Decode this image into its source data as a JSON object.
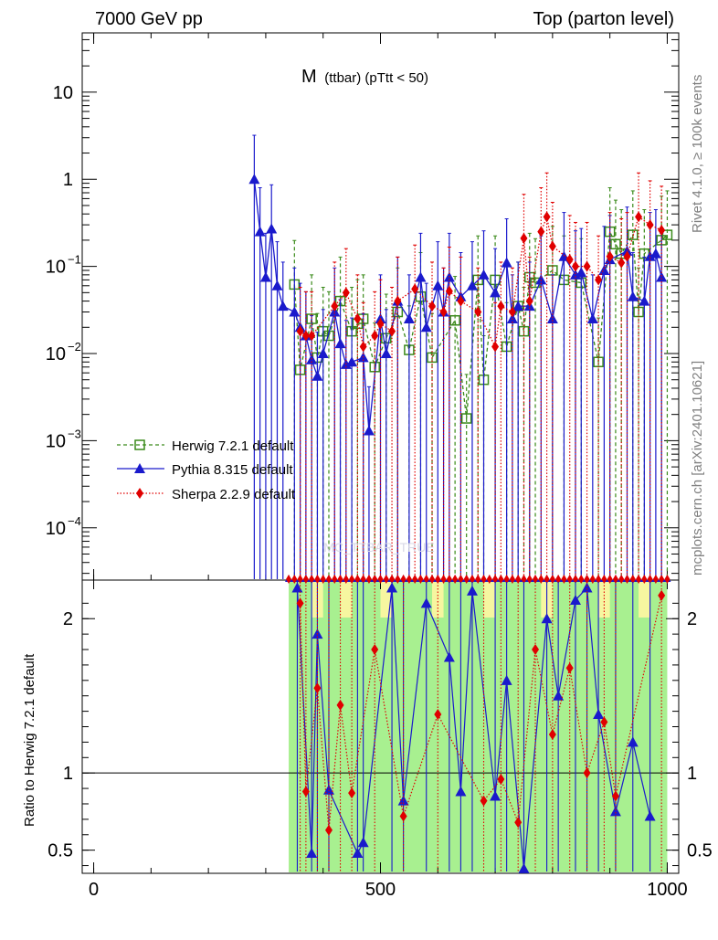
{
  "header": {
    "left": "7000 GeV pp",
    "right": "Top (parton level)"
  },
  "side": {
    "rivet": "Rivet 4.1.0, ≥ 100k events",
    "mcplots": "mcplots.cern.ch [arXiv:2401.10621]"
  },
  "watermark": "MC_TTBAR_TRUE",
  "chart_data": {
    "type": "line",
    "title_main": "M",
    "title_sub": "(ttbar) (pTtt < 50)",
    "xlim": [
      -20,
      1020
    ],
    "x_ticks": [
      0,
      500,
      1000
    ],
    "main_ylim_log10": [
      -4.6,
      1.68
    ],
    "main_y_ticks": [
      {
        "v": 10,
        "label": "10"
      },
      {
        "v": 1,
        "label": "1"
      },
      {
        "v": 0.1,
        "label": "10",
        "exp": "−1"
      },
      {
        "v": 0.01,
        "label": "10",
        "exp": "−2"
      },
      {
        "v": 0.001,
        "label": "10",
        "exp": "−3"
      },
      {
        "v": 0.0001,
        "label": "10",
        "exp": "−4"
      }
    ],
    "ratio_ylabel": "Ratio to Herwig 7.2.1 default",
    "ratio_ylim": [
      0.35,
      2.25
    ],
    "ratio_y_ticks": [
      {
        "v": 2,
        "label": "2"
      },
      {
        "v": 1,
        "label": "1"
      },
      {
        "v": 0.5,
        "label": "0.5"
      }
    ],
    "series": [
      {
        "name": "Herwig 7.2.1 default",
        "color": "#3a8a1a",
        "marker": "square",
        "points": [
          [
            350,
            0.062
          ],
          [
            360,
            0.0065
          ],
          [
            380,
            0.025
          ],
          [
            390,
            0.009
          ],
          [
            400,
            0.018
          ],
          [
            410,
            0.016
          ],
          [
            430,
            0.04
          ],
          [
            450,
            0.018
          ],
          [
            460,
            0.022
          ],
          [
            470,
            0.025
          ],
          [
            490,
            0.007
          ],
          [
            510,
            0.015
          ],
          [
            530,
            0.03
          ],
          [
            550,
            0.011
          ],
          [
            570,
            0.045
          ],
          [
            590,
            0.009
          ],
          [
            630,
            0.024
          ],
          [
            650,
            0.0018
          ],
          [
            670,
            0.07
          ],
          [
            680,
            0.005
          ],
          [
            700,
            0.07
          ],
          [
            720,
            0.012
          ],
          [
            740,
            0.035
          ],
          [
            750,
            0.018
          ],
          [
            760,
            0.075
          ],
          [
            770,
            0.065
          ],
          [
            800,
            0.09
          ],
          [
            820,
            0.07
          ],
          [
            850,
            0.065
          ],
          [
            880,
            0.008
          ],
          [
            900,
            0.25
          ],
          [
            910,
            0.18
          ],
          [
            920,
            0.14
          ],
          [
            940,
            0.23
          ],
          [
            950,
            0.03
          ],
          [
            960,
            0.14
          ],
          [
            990,
            0.2
          ],
          [
            1000,
            0.23
          ]
        ]
      },
      {
        "name": "Pythia 8.315 default",
        "color": "#1a1acc",
        "marker": "triangle",
        "points": [
          [
            280,
            1.0
          ],
          [
            290,
            0.25
          ],
          [
            300,
            0.075
          ],
          [
            310,
            0.27
          ],
          [
            320,
            0.06
          ],
          [
            330,
            0.035
          ],
          [
            350,
            0.03
          ],
          [
            360,
            0.02
          ],
          [
            370,
            0.016
          ],
          [
            380,
            0.0085
          ],
          [
            390,
            0.0055
          ],
          [
            400,
            0.01
          ],
          [
            420,
            0.03
          ],
          [
            430,
            0.013
          ],
          [
            440,
            0.0075
          ],
          [
            450,
            0.008
          ],
          [
            470,
            0.009
          ],
          [
            480,
            0.0013
          ],
          [
            500,
            0.025
          ],
          [
            510,
            0.01
          ],
          [
            530,
            0.04
          ],
          [
            550,
            0.025
          ],
          [
            570,
            0.075
          ],
          [
            580,
            0.02
          ],
          [
            600,
            0.06
          ],
          [
            610,
            0.03
          ],
          [
            620,
            0.075
          ],
          [
            640,
            0.045
          ],
          [
            660,
            0.06
          ],
          [
            680,
            0.08
          ],
          [
            700,
            0.05
          ],
          [
            720,
            0.11
          ],
          [
            730,
            0.025
          ],
          [
            740,
            0.035
          ],
          [
            760,
            0.035
          ],
          [
            780,
            0.07
          ],
          [
            800,
            0.025
          ],
          [
            820,
            0.13
          ],
          [
            840,
            0.08
          ],
          [
            850,
            0.085
          ],
          [
            870,
            0.025
          ],
          [
            890,
            0.09
          ],
          [
            900,
            0.12
          ],
          [
            930,
            0.15
          ],
          [
            940,
            0.045
          ],
          [
            960,
            0.04
          ],
          [
            970,
            0.13
          ],
          [
            980,
            0.14
          ],
          [
            990,
            0.075
          ]
        ]
      },
      {
        "name": "Sherpa 2.2.9 default",
        "color": "#e00000",
        "marker": "diamond",
        "points": [
          [
            360,
            0.018
          ],
          [
            370,
            0.016
          ],
          [
            380,
            0.016
          ],
          [
            420,
            0.035
          ],
          [
            440,
            0.05
          ],
          [
            460,
            0.025
          ],
          [
            470,
            0.012
          ],
          [
            490,
            0.016
          ],
          [
            500,
            0.022
          ],
          [
            520,
            0.018
          ],
          [
            530,
            0.04
          ],
          [
            560,
            0.055
          ],
          [
            590,
            0.035
          ],
          [
            610,
            0.03
          ],
          [
            620,
            0.052
          ],
          [
            640,
            0.04
          ],
          [
            670,
            0.03
          ],
          [
            700,
            0.012
          ],
          [
            710,
            0.035
          ],
          [
            730,
            0.03
          ],
          [
            750,
            0.21
          ],
          [
            760,
            0.04
          ],
          [
            780,
            0.25
          ],
          [
            790,
            0.37
          ],
          [
            800,
            0.17
          ],
          [
            830,
            0.12
          ],
          [
            840,
            0.1
          ],
          [
            860,
            0.1
          ],
          [
            880,
            0.07
          ],
          [
            900,
            0.13
          ],
          [
            920,
            0.11
          ],
          [
            930,
            0.13
          ],
          [
            950,
            0.37
          ],
          [
            970,
            0.3
          ],
          [
            990,
            0.26
          ]
        ]
      }
    ],
    "ratio_series": [
      {
        "name": "Pythia 8.315 default",
        "color": "#1a1acc",
        "marker": "triangle",
        "points": [
          [
            355,
            2.2
          ],
          [
            380,
            0.48
          ],
          [
            390,
            1.9
          ],
          [
            410,
            0.89
          ],
          [
            460,
            0.48
          ],
          [
            470,
            0.55
          ],
          [
            520,
            2.2
          ],
          [
            540,
            0.82
          ],
          [
            580,
            2.1
          ],
          [
            620,
            1.75
          ],
          [
            640,
            0.88
          ],
          [
            660,
            2.18
          ],
          [
            700,
            0.85
          ],
          [
            720,
            1.6
          ],
          [
            750,
            0.38
          ],
          [
            790,
            2.0
          ],
          [
            810,
            1.5
          ],
          [
            840,
            2.12
          ],
          [
            860,
            2.2
          ],
          [
            880,
            1.38
          ],
          [
            910,
            0.75
          ],
          [
            940,
            1.2
          ],
          [
            970,
            0.72
          ]
        ]
      },
      {
        "name": "Sherpa 2.2.9 default",
        "color": "#e00000",
        "marker": "diamond",
        "points": [
          [
            360,
            2.1
          ],
          [
            370,
            0.88
          ],
          [
            390,
            1.55
          ],
          [
            410,
            0.63
          ],
          [
            430,
            1.44
          ],
          [
            450,
            0.87
          ],
          [
            490,
            1.8
          ],
          [
            540,
            0.72
          ],
          [
            600,
            1.38
          ],
          [
            680,
            0.82
          ],
          [
            710,
            0.96
          ],
          [
            740,
            0.68
          ],
          [
            770,
            1.8
          ],
          [
            800,
            1.25
          ],
          [
            830,
            1.68
          ],
          [
            860,
            1.0
          ],
          [
            890,
            1.33
          ],
          [
            910,
            0.85
          ],
          [
            990,
            2.15
          ]
        ]
      }
    ]
  }
}
